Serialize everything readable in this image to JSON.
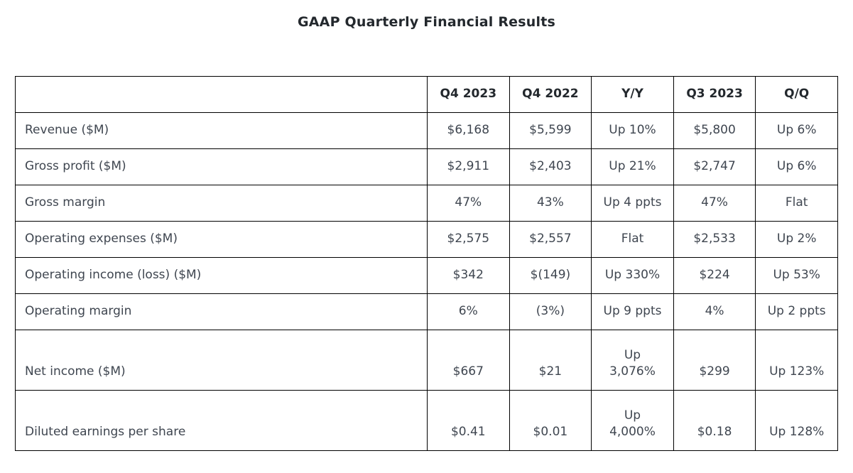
{
  "title": "GAAP Quarterly Financial Results",
  "colors": {
    "background": "#ffffff",
    "border": "#000000",
    "heading_text": "#23282d",
    "body_text": "#3f4650"
  },
  "table": {
    "columns": [
      "",
      "Q4 2023",
      "Q4 2022",
      "Y/Y",
      "Q3 2023",
      "Q/Q"
    ],
    "rows": [
      {
        "label": "Revenue ($M)",
        "values": [
          "$6,168",
          "$5,599",
          "Up 10%",
          "$5,800",
          "Up 6%"
        ],
        "tall": false
      },
      {
        "label": "Gross profit ($M)",
        "values": [
          "$2,911",
          "$2,403",
          "Up 21%",
          "$2,747",
          "Up 6%"
        ],
        "tall": false
      },
      {
        "label": "Gross margin",
        "values": [
          "47%",
          "43%",
          "Up 4 ppts",
          "47%",
          "Flat"
        ],
        "tall": false
      },
      {
        "label": "Operating expenses ($M)",
        "values": [
          "$2,575",
          "$2,557",
          "Flat",
          "$2,533",
          "Up 2%"
        ],
        "tall": false
      },
      {
        "label": "Operating income (loss) ($M)",
        "values": [
          "$342",
          "$(149)",
          "Up 330%",
          "$224",
          "Up 53%"
        ],
        "tall": false
      },
      {
        "label": "Operating margin",
        "values": [
          "6%",
          "(3%)",
          "Up 9 ppts",
          "4%",
          "Up 2 ppts"
        ],
        "tall": false
      },
      {
        "label": "Net income ($M)",
        "values": [
          "$667",
          "$21",
          "Up\n3,076%",
          "$299",
          "Up 123%"
        ],
        "tall": true
      },
      {
        "label": "Diluted earnings per share",
        "values": [
          "$0.41",
          "$0.01",
          "Up\n4,000%",
          "$0.18",
          "Up 128%"
        ],
        "tall": true
      }
    ]
  }
}
